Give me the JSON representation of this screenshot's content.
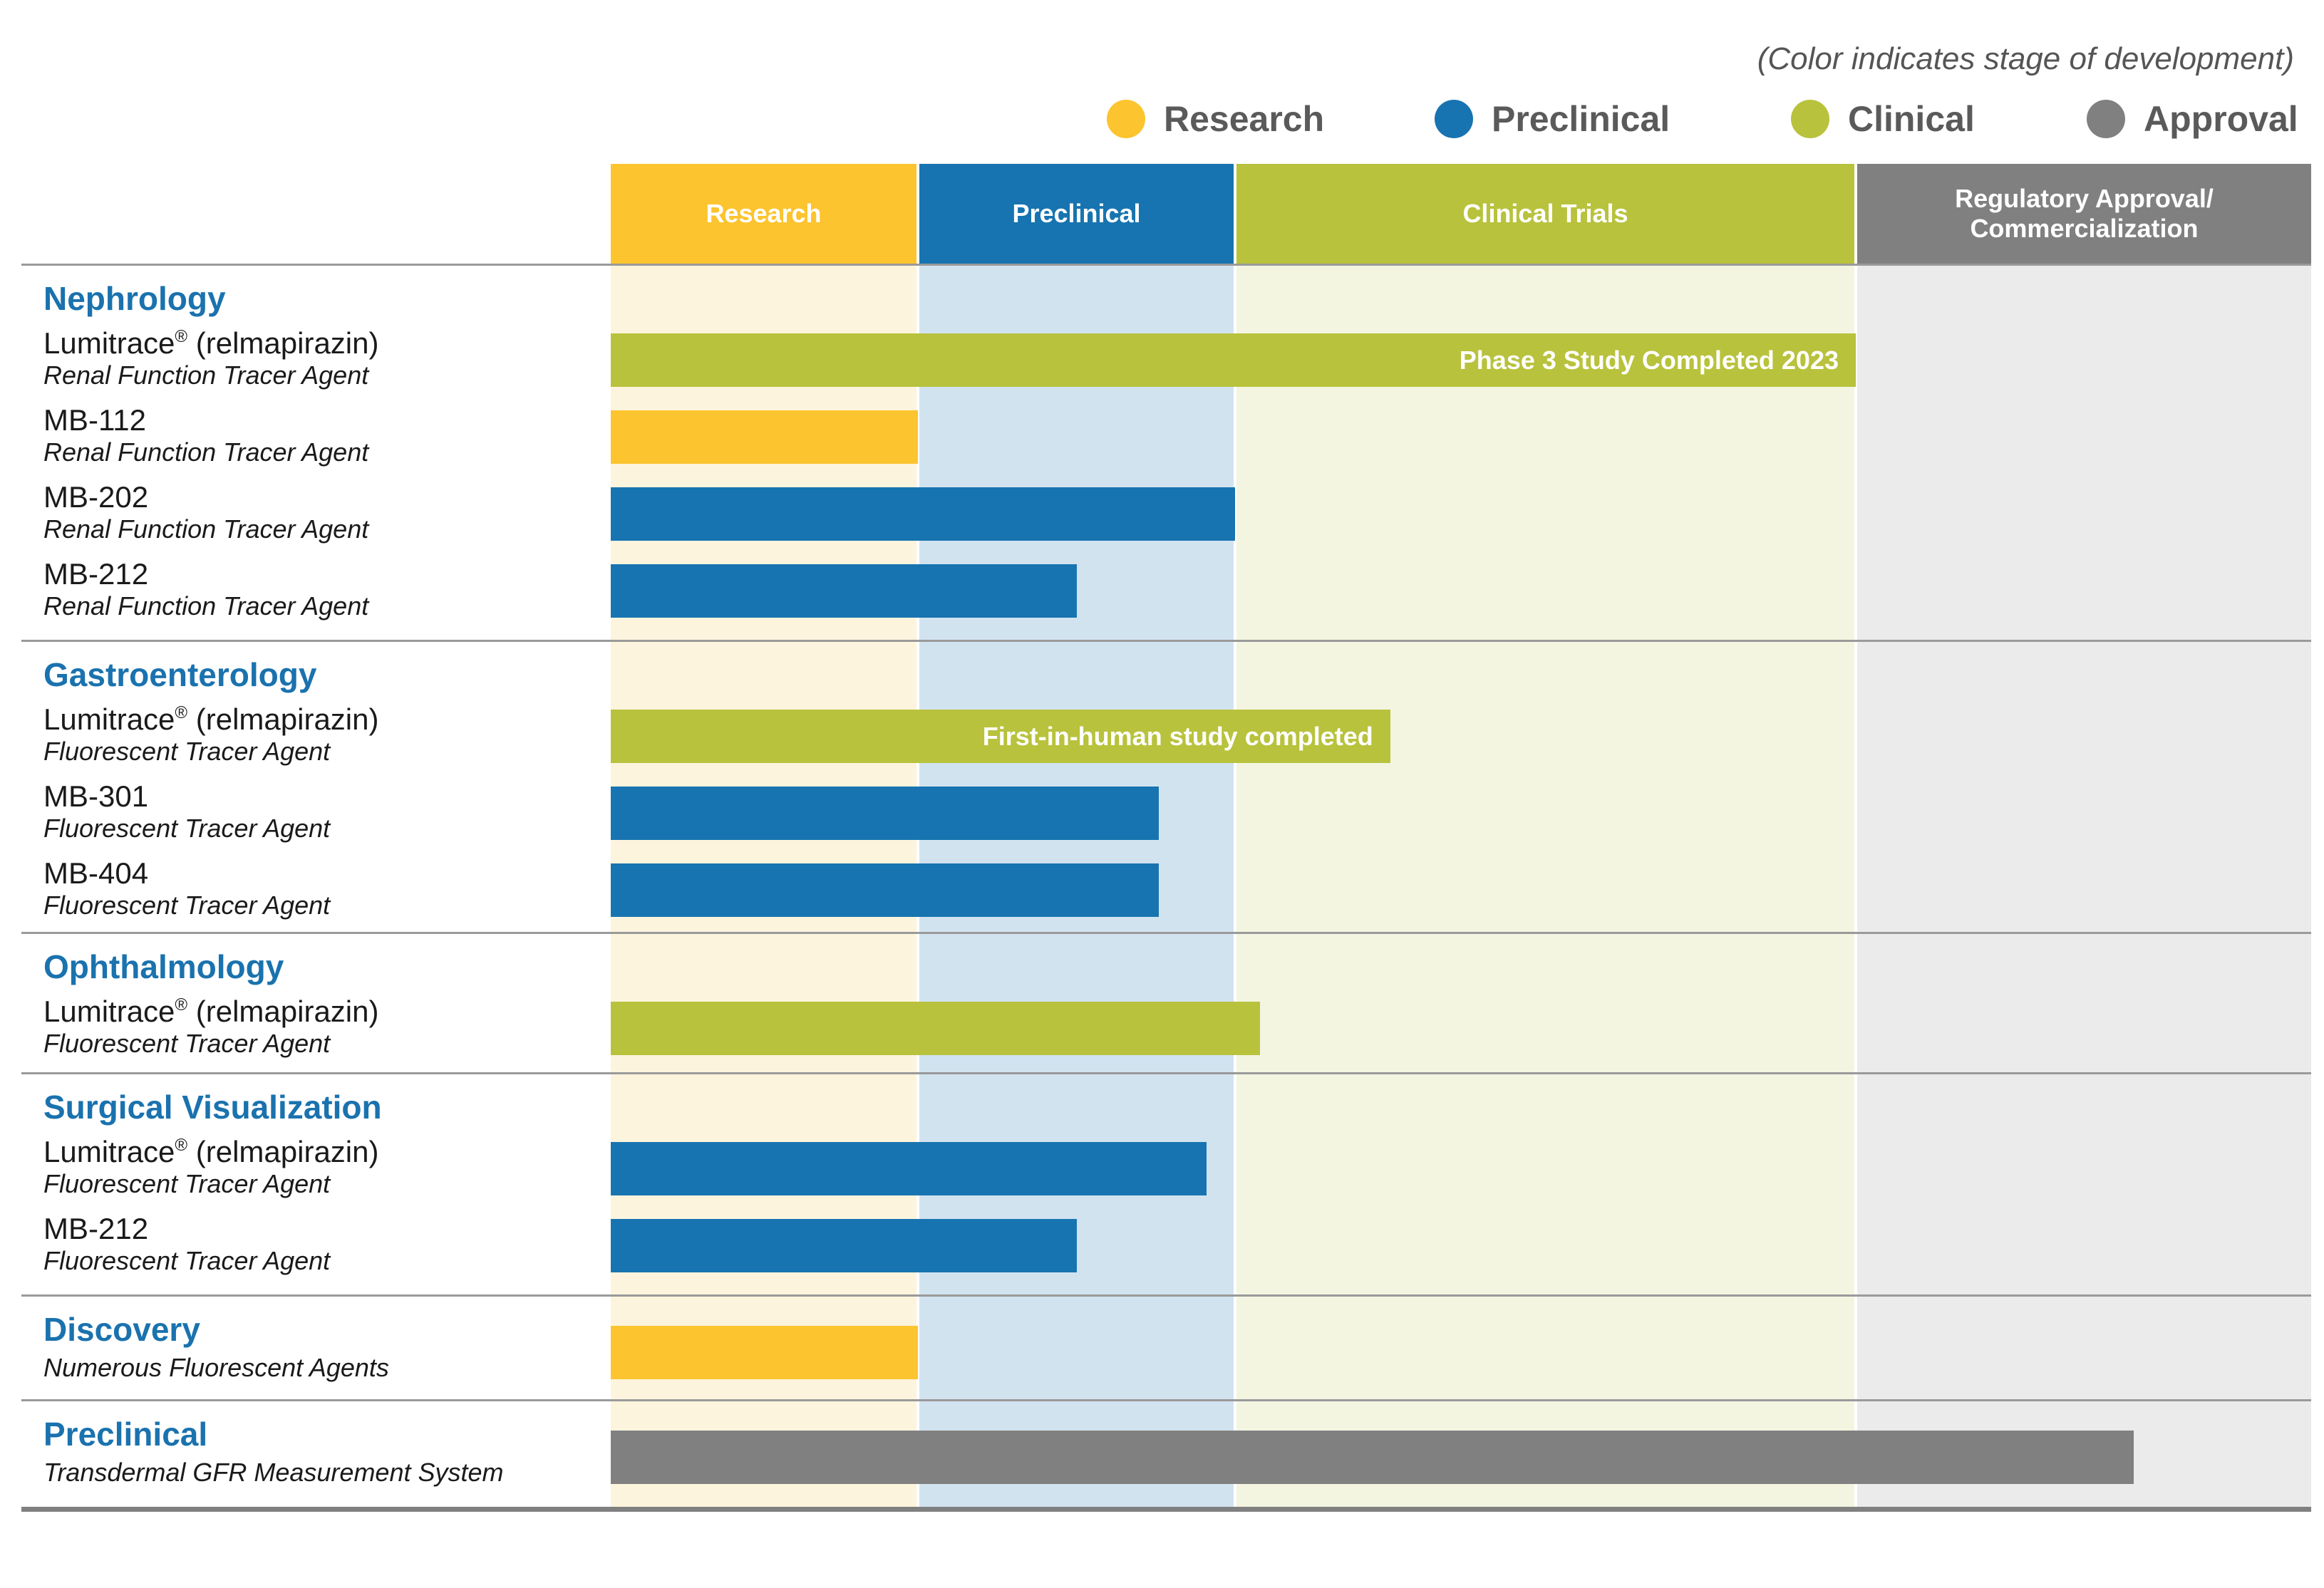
{
  "note": "(Color indicates stage of development)",
  "colors": {
    "research": "#fcc42e",
    "preclinical": "#1774b0",
    "clinical": "#b8c23c",
    "approval": "#808080",
    "research_bg": "#fdf4dd",
    "preclinical_bg": "#d2e3f0",
    "clinical_bg": "#f3f5e1",
    "approval_bg": "#ebebeb"
  },
  "legend": [
    {
      "label": "Research",
      "color": "#fcc42e"
    },
    {
      "label": "Preclinical",
      "color": "#1774b0"
    },
    {
      "label": "Clinical",
      "color": "#b8c23c"
    },
    {
      "label": "Approval",
      "color": "#808080"
    }
  ],
  "chart_data": {
    "type": "bar",
    "orientation": "horizontal",
    "stages": [
      {
        "key": "research",
        "label": "Research"
      },
      {
        "key": "preclinical",
        "label": "Preclinical"
      },
      {
        "key": "clinical",
        "label": "Clinical Trials"
      },
      {
        "key": "approval",
        "label": "Regulatory Approval/\nCommercialization"
      }
    ],
    "groups": [
      {
        "category": "Nephrology",
        "programs": [
          {
            "name": "Lumitrace",
            "reg": "®",
            "name_suffix": " (relmapirazin)",
            "subtitle": "Renal Function Tracer Agent",
            "stage": "clinical",
            "progress": 3.0,
            "label": "Phase 3 Study Completed 2023"
          },
          {
            "name": "MB-112",
            "subtitle": "Renal Function Tracer Agent",
            "stage": "research",
            "progress": 1.0
          },
          {
            "name": "MB-202",
            "subtitle": "Renal Function Tracer Agent",
            "stage": "preclinical",
            "progress": 2.0
          },
          {
            "name": "MB-212",
            "subtitle": "Renal Function Tracer Agent",
            "stage": "preclinical",
            "progress": 1.5
          }
        ]
      },
      {
        "category": "Gastroenterology",
        "programs": [
          {
            "name": "Lumitrace",
            "reg": "®",
            "name_suffix": " (relmapirazin)",
            "subtitle": "Fluorescent Tracer Agent",
            "stage": "clinical",
            "progress": 2.25,
            "label": "First-in-human study completed"
          },
          {
            "name": "MB-301",
            "subtitle": "Fluorescent Tracer Agent",
            "stage": "preclinical",
            "progress": 1.76
          },
          {
            "name": "MB-404",
            "subtitle": "Fluorescent Tracer Agent",
            "stage": "preclinical",
            "progress": 1.76
          }
        ]
      },
      {
        "category": "Ophthalmology",
        "programs": [
          {
            "name": "Lumitrace",
            "reg": "®",
            "name_suffix": " (relmapirazin)",
            "subtitle": "Fluorescent Tracer Agent",
            "stage": "clinical",
            "progress": 2.04
          }
        ]
      },
      {
        "category": "Surgical Visualization",
        "programs": [
          {
            "name": "Lumitrace",
            "reg": "®",
            "name_suffix": " (relmapirazin)",
            "subtitle": "Fluorescent Tracer Agent",
            "stage": "preclinical",
            "progress": 1.91
          },
          {
            "name": "MB-212",
            "subtitle": "Fluorescent Tracer Agent",
            "stage": "preclinical",
            "progress": 1.5
          }
        ]
      },
      {
        "category": "Discovery",
        "programs": [
          {
            "subtitle": "Numerous Fluorescent Agents",
            "stage": "research",
            "progress": 1.0
          }
        ]
      },
      {
        "category": "Preclinical",
        "programs": [
          {
            "subtitle": "Transdermal GFR Measurement System",
            "stage": "approval",
            "progress": 3.61
          }
        ]
      }
    ]
  }
}
